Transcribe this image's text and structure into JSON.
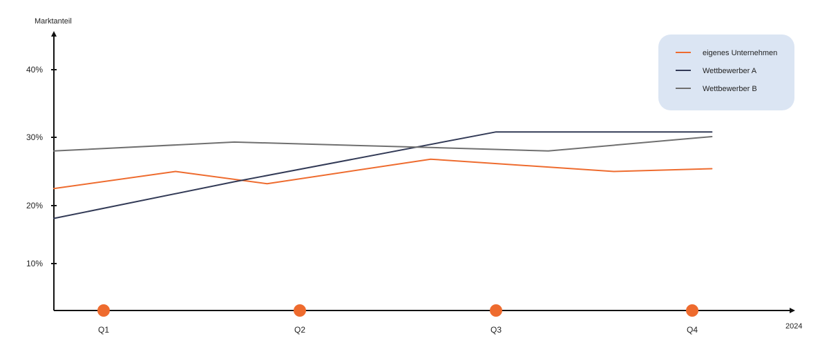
{
  "chart_data": {
    "type": "line",
    "ylabel": "Marktanteil",
    "xlabel": "2024",
    "y_ticks": [
      {
        "value": 10,
        "label": "10%"
      },
      {
        "value": 20,
        "label": "20%"
      },
      {
        "value": 30,
        "label": "30%"
      },
      {
        "value": 40,
        "label": "40%"
      }
    ],
    "ylim": [
      3,
      48
    ],
    "xlim": [
      0,
      6.5
    ],
    "categories": [
      "Q1",
      "Q2",
      "Q3",
      "Q4"
    ],
    "category_x": [
      0.5,
      2.0,
      3.5,
      5.0
    ],
    "legend_position": "top-right",
    "series": [
      {
        "name": "eigenes Unternehmen",
        "color": "#ee6b2e",
        "points": [
          [
            0,
            22.5
          ],
          [
            1.05,
            25.0
          ],
          [
            1.75,
            23.2
          ],
          [
            3.0,
            26.8
          ],
          [
            4.4,
            25.0
          ],
          [
            5.15,
            25.4
          ]
        ]
      },
      {
        "name": "Wettbewerber A",
        "color": "#323a56",
        "points": [
          [
            0,
            17.8
          ],
          [
            1.5,
            23.5
          ],
          [
            3.5,
            30.8
          ],
          [
            5.15,
            30.8
          ]
        ]
      },
      {
        "name": "Wettbewerber B",
        "color": "#6f6f6f",
        "points": [
          [
            0,
            28.0
          ],
          [
            1.5,
            29.3
          ],
          [
            3.0,
            28.5
          ],
          [
            3.9,
            28.0
          ],
          [
            5.15,
            30.1
          ]
        ]
      }
    ],
    "marker_color": "#ee6b2e",
    "legend_background": "#dbe5f3",
    "grid": false
  }
}
